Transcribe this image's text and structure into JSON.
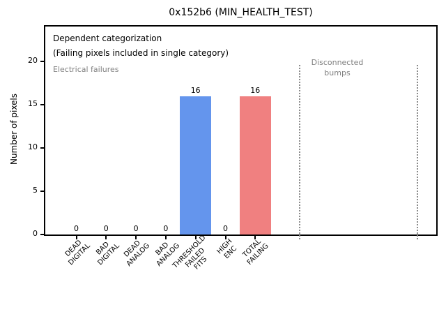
{
  "chart_data": {
    "type": "bar",
    "title": "0x152b6 (MIN_HEALTH_TEST)",
    "ylabel": "Number of pixels",
    "xlabel": "",
    "categories": [
      "DEAD\nDIGITAL",
      "BAD\nDIGITAL",
      "DEAD\nANALOG",
      "BAD\nANALOG",
      "THRESHOLD\nFAILED\nFITS",
      "HIGH\nENC",
      "TOTAL\nFAILING"
    ],
    "values": [
      0,
      0,
      0,
      0,
      16,
      0,
      16
    ],
    "value_labels": [
      "0",
      "0",
      "0",
      "0",
      "16",
      "0",
      "16"
    ],
    "bar_colors": [
      "#6495ed",
      "#6495ed",
      "#6495ed",
      "#6495ed",
      "#6495ed",
      "#6495ed",
      "#f08080"
    ],
    "yticks": [
      0,
      5,
      10,
      15,
      20
    ],
    "ylim": [
      0,
      24.2
    ],
    "grid": false,
    "legend": null,
    "annotations": [
      {
        "text": "Dependent categorization",
        "color": "#000000"
      },
      {
        "text": "(Failing pixels included in single category)",
        "color": "#000000"
      },
      {
        "text": "Electrical failures",
        "color": "#808080"
      },
      {
        "text": "Disconnected\nbumps",
        "color": "#808080",
        "x": 8.75
      }
    ],
    "section_dividers": {
      "style": "dotted",
      "color": "#8a8a8a",
      "x_positions": [
        7.48,
        11.43
      ]
    }
  }
}
